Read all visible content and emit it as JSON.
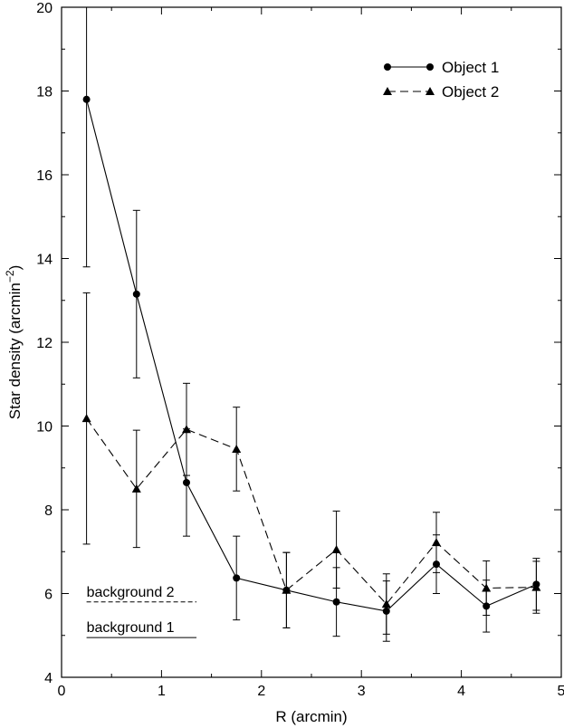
{
  "chart_data": {
    "type": "line",
    "title": "",
    "xlabel": "R (arcmin)",
    "ylabel_main": "Star density (arcmin",
    "ylabel_sup": "−2",
    "ylabel_close": ")",
    "xlim": [
      0,
      5
    ],
    "ylim": [
      4,
      20
    ],
    "xticks": [
      0,
      1,
      2,
      3,
      4,
      5
    ],
    "yticks": [
      4,
      6,
      8,
      10,
      12,
      14,
      16,
      18,
      20
    ],
    "grid": false,
    "legend": "top-right",
    "x": [
      0.25,
      0.75,
      1.25,
      1.75,
      2.25,
      2.75,
      3.25,
      3.75,
      4.25,
      4.75
    ],
    "series": [
      {
        "name": "Object 1",
        "marker": "circle",
        "line": "solid",
        "values": [
          17.8,
          13.15,
          8.65,
          6.37,
          6.08,
          5.8,
          5.58,
          6.7,
          5.7,
          6.22
        ],
        "errors": [
          4.0,
          2.0,
          1.28,
          1.0,
          0.9,
          0.82,
          0.72,
          0.7,
          0.62,
          0.62
        ]
      },
      {
        "name": "Object 2",
        "marker": "triangle",
        "line": "dashed",
        "values": [
          10.18,
          8.5,
          9.92,
          9.45,
          6.08,
          7.05,
          5.75,
          7.22,
          6.13,
          6.15
        ],
        "errors": [
          3.0,
          1.4,
          1.1,
          1.0,
          0.9,
          0.92,
          0.72,
          0.72,
          0.65,
          0.62
        ]
      }
    ],
    "annotations": [
      {
        "text": "background 2",
        "line": "dashed",
        "y": 5.8,
        "x_start": 0.25,
        "x_end": 1.35
      },
      {
        "text": "background 1",
        "line": "solid",
        "y": 4.95,
        "x_start": 0.25,
        "x_end": 1.35
      }
    ]
  }
}
